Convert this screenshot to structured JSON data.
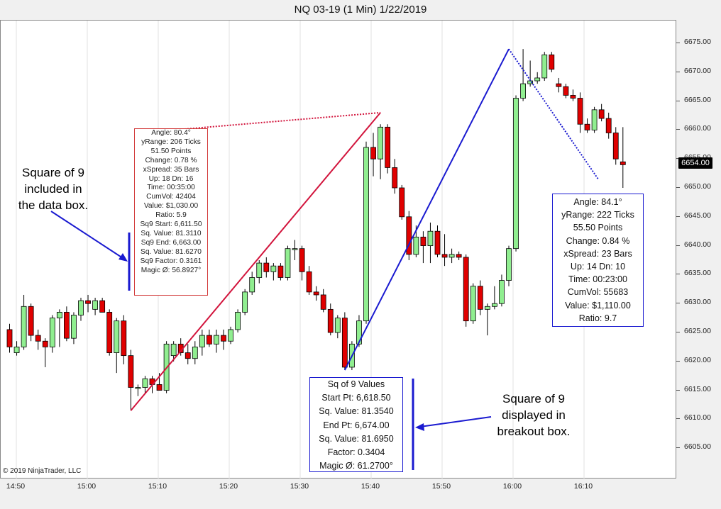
{
  "window": {
    "title": "NQ 03-19 (1 Min)  1/22/2019"
  },
  "copyright": "© 2019 NinjaTrader, LLC",
  "price_marker": "6654.00",
  "y_axis": {
    "min": 6600,
    "max": 6677,
    "ticks": [
      "6675.00",
      "6670.00",
      "6665.00",
      "6660.00",
      "6655.00",
      "6650.00",
      "6645.00",
      "6640.00",
      "6635.00",
      "6630.00",
      "6625.00",
      "6620.00",
      "6615.00",
      "6610.00",
      "6605.00"
    ]
  },
  "x_axis": {
    "ticks": [
      "14:50",
      "15:00",
      "15:10",
      "15:20",
      "15:30",
      "15:40",
      "15:50",
      "16:00",
      "16:10"
    ]
  },
  "data_box": {
    "lines": [
      "Angle: 80.4°",
      "yRange: 206 Ticks",
      "51.50 Points",
      "Change: 0.78 %",
      "xSpread: 35 Bars",
      "Up: 18 Dn: 16",
      "Time: 00:35:00",
      "CumVol: 42404",
      "Value: $1,030.00",
      "Ratio: 5.9",
      "Sq9 Start: 6,611.50",
      "Sq. Value: 81.3110",
      "Sq9 End: 6,663.00",
      "Sq. Value: 81.6270",
      "Sq9 Factor: 0.3161",
      "Magic Ø: 56.8927°"
    ]
  },
  "breakout_box": {
    "lines": [
      "Angle: 84.1°",
      "yRange: 222 Ticks",
      "55.50 Points",
      "Change: 0.84 %",
      "xSpread: 23 Bars",
      "Up: 14 Dn: 10",
      "Time: 00:23:00",
      "CumVol: 55683",
      "Value: $1,110.00",
      "Ratio: 9.7"
    ]
  },
  "sq9_box": {
    "lines": [
      "Sq of 9 Values",
      "Start Pt: 6,618.50",
      "Sq. Value: 81.3540",
      "End Pt: 6,674.00",
      "Sq. Value: 81.6950",
      "Factor: 0.3404",
      "Magic Ø: 61.2700°"
    ]
  },
  "annotations": {
    "left": [
      "Square of 9",
      "included in",
      "the data box."
    ],
    "right": [
      "Square of 9",
      "displayed in",
      "breakout box."
    ]
  },
  "colors": {
    "up": "#90ee90",
    "down": "#e00000",
    "red_line": "#d2143c",
    "blue_line": "#1a1ad0",
    "background": "#ffffff"
  },
  "chart_data": {
    "type": "candlestick",
    "title": "NQ 03-19 (1 Min)  1/22/2019",
    "candles": [
      {
        "o": 6625.5,
        "h": 6626.5,
        "l": 6621.5,
        "c": 6622.5
      },
      {
        "o": 6621.5,
        "h": 6623.5,
        "l": 6621.0,
        "c": 6622.5
      },
      {
        "o": 6622.5,
        "h": 6631.5,
        "l": 6622.0,
        "c": 6629.5
      },
      {
        "o": 6629.5,
        "h": 6630.0,
        "l": 6623.5,
        "c": 6624.5
      },
      {
        "o": 6624.5,
        "h": 6625.5,
        "l": 6622.0,
        "c": 6623.5
      },
      {
        "o": 6623.5,
        "h": 6624.0,
        "l": 6619.0,
        "c": 6622.5
      },
      {
        "o": 6622.5,
        "h": 6628.0,
        "l": 6621.5,
        "c": 6627.5
      },
      {
        "o": 6627.5,
        "h": 6629.0,
        "l": 6622.5,
        "c": 6628.5
      },
      {
        "o": 6628.5,
        "h": 6629.5,
        "l": 6623.5,
        "c": 6624.0
      },
      {
        "o": 6624.0,
        "h": 6628.5,
        "l": 6623.0,
        "c": 6628.0
      },
      {
        "o": 6628.0,
        "h": 6631.0,
        "l": 6627.0,
        "c": 6630.5
      },
      {
        "o": 6630.5,
        "h": 6631.5,
        "l": 6628.5,
        "c": 6630.0
      },
      {
        "o": 6629.0,
        "h": 6631.0,
        "l": 6628.0,
        "c": 6630.5
      },
      {
        "o": 6630.5,
        "h": 6631.0,
        "l": 6628.5,
        "c": 6628.5
      },
      {
        "o": 6628.5,
        "h": 6629.0,
        "l": 6621.0,
        "c": 6621.5
      },
      {
        "o": 6621.5,
        "h": 6627.5,
        "l": 6618.0,
        "c": 6627.0
      },
      {
        "o": 6627.0,
        "h": 6628.0,
        "l": 6619.5,
        "c": 6621.0
      },
      {
        "o": 6621.0,
        "h": 6622.0,
        "l": 6611.5,
        "c": 6615.5
      },
      {
        "o": 6615.5,
        "h": 6616.0,
        "l": 6614.0,
        "c": 6615.5
      },
      {
        "o": 6615.5,
        "h": 6617.5,
        "l": 6614.5,
        "c": 6617.0
      },
      {
        "o": 6617.0,
        "h": 6617.5,
        "l": 6614.5,
        "c": 6616.0
      },
      {
        "o": 6616.0,
        "h": 6618.0,
        "l": 6615.0,
        "c": 6615.0
      },
      {
        "o": 6615.0,
        "h": 6623.5,
        "l": 6614.5,
        "c": 6623.0
      },
      {
        "o": 6621.0,
        "h": 6623.5,
        "l": 6620.0,
        "c": 6623.0
      },
      {
        "o": 6623.0,
        "h": 6624.0,
        "l": 6621.0,
        "c": 6621.5
      },
      {
        "o": 6621.5,
        "h": 6623.0,
        "l": 6619.5,
        "c": 6620.5
      },
      {
        "o": 6620.5,
        "h": 6623.5,
        "l": 6619.5,
        "c": 6622.5
      },
      {
        "o": 6622.5,
        "h": 6625.5,
        "l": 6621.0,
        "c": 6624.5
      },
      {
        "o": 6624.5,
        "h": 6625.5,
        "l": 6622.5,
        "c": 6623.0
      },
      {
        "o": 6623.0,
        "h": 6625.5,
        "l": 6621.5,
        "c": 6624.5
      },
      {
        "o": 6624.5,
        "h": 6625.5,
        "l": 6622.0,
        "c": 6623.5
      },
      {
        "o": 6623.5,
        "h": 6626.0,
        "l": 6623.0,
        "c": 6625.5
      },
      {
        "o": 6625.5,
        "h": 6629.0,
        "l": 6625.0,
        "c": 6628.5
      },
      {
        "o": 6628.5,
        "h": 6632.5,
        "l": 6628.0,
        "c": 6632.0
      },
      {
        "o": 6632.0,
        "h": 6635.5,
        "l": 6631.5,
        "c": 6634.5
      },
      {
        "o": 6634.5,
        "h": 6637.5,
        "l": 6633.5,
        "c": 6637.0
      },
      {
        "o": 6637.0,
        "h": 6638.0,
        "l": 6634.5,
        "c": 6635.5
      },
      {
        "o": 6635.5,
        "h": 6637.0,
        "l": 6634.0,
        "c": 6636.5
      },
      {
        "o": 6636.5,
        "h": 6637.0,
        "l": 6634.0,
        "c": 6634.5
      },
      {
        "o": 6634.5,
        "h": 6640.0,
        "l": 6634.0,
        "c": 6639.5
      },
      {
        "o": 6639.5,
        "h": 6641.0,
        "l": 6637.5,
        "c": 6639.5
      },
      {
        "o": 6639.5,
        "h": 6640.0,
        "l": 6634.0,
        "c": 6635.5
      },
      {
        "o": 6635.5,
        "h": 6636.5,
        "l": 6631.5,
        "c": 6632.0
      },
      {
        "o": 6632.0,
        "h": 6633.0,
        "l": 6630.5,
        "c": 6631.5
      },
      {
        "o": 6631.5,
        "h": 6632.5,
        "l": 6628.5,
        "c": 6629.0
      },
      {
        "o": 6629.0,
        "h": 6630.0,
        "l": 6624.5,
        "c": 6625.0
      },
      {
        "o": 6625.0,
        "h": 6628.0,
        "l": 6624.0,
        "c": 6627.5
      },
      {
        "o": 6627.5,
        "h": 6628.5,
        "l": 6618.5,
        "c": 6619.0
      },
      {
        "o": 6619.0,
        "h": 6623.5,
        "l": 6618.5,
        "c": 6623.0
      },
      {
        "o": 6623.0,
        "h": 6628.0,
        "l": 6622.5,
        "c": 6627.0
      },
      {
        "o": 6627.0,
        "h": 6658.0,
        "l": 6626.5,
        "c": 6657.0
      },
      {
        "o": 6657.0,
        "h": 6659.5,
        "l": 6652.0,
        "c": 6655.0
      },
      {
        "o": 6655.0,
        "h": 6661.0,
        "l": 6651.5,
        "c": 6660.5
      },
      {
        "o": 6660.5,
        "h": 6661.0,
        "l": 6652.5,
        "c": 6653.5
      },
      {
        "o": 6653.5,
        "h": 6655.0,
        "l": 6649.0,
        "c": 6650.0
      },
      {
        "o": 6650.0,
        "h": 6650.5,
        "l": 6644.5,
        "c": 6645.0
      },
      {
        "o": 6645.0,
        "h": 6646.0,
        "l": 6637.5,
        "c": 6638.5
      },
      {
        "o": 6638.5,
        "h": 6643.5,
        "l": 6638.0,
        "c": 6641.5
      },
      {
        "o": 6641.5,
        "h": 6642.5,
        "l": 6637.0,
        "c": 6640.0
      },
      {
        "o": 6640.0,
        "h": 6644.0,
        "l": 6637.0,
        "c": 6642.5
      },
      {
        "o": 6642.5,
        "h": 6643.5,
        "l": 6638.0,
        "c": 6638.5
      },
      {
        "o": 6638.5,
        "h": 6642.0,
        "l": 6636.5,
        "c": 6638.0
      },
      {
        "o": 6638.0,
        "h": 6639.5,
        "l": 6637.0,
        "c": 6638.5
      },
      {
        "o": 6638.5,
        "h": 6639.0,
        "l": 6637.5,
        "c": 6638.0
      },
      {
        "o": 6638.0,
        "h": 6638.5,
        "l": 6626.0,
        "c": 6627.0
      },
      {
        "o": 6627.0,
        "h": 6633.5,
        "l": 6626.5,
        "c": 6633.0
      },
      {
        "o": 6633.0,
        "h": 6634.0,
        "l": 6628.0,
        "c": 6629.0
      },
      {
        "o": 6629.0,
        "h": 6630.0,
        "l": 6624.5,
        "c": 6629.5
      },
      {
        "o": 6629.5,
        "h": 6633.0,
        "l": 6629.0,
        "c": 6630.0
      },
      {
        "o": 6630.0,
        "h": 6635.0,
        "l": 6629.5,
        "c": 6634.0
      },
      {
        "o": 6634.0,
        "h": 6640.0,
        "l": 6633.0,
        "c": 6639.5
      },
      {
        "o": 6639.5,
        "h": 6666.0,
        "l": 6639.0,
        "c": 6665.5
      },
      {
        "o": 6665.5,
        "h": 6674.0,
        "l": 6665.0,
        "c": 6668.0
      },
      {
        "o": 6668.0,
        "h": 6672.0,
        "l": 6667.5,
        "c": 6668.5
      },
      {
        "o": 6668.5,
        "h": 6670.0,
        "l": 6668.0,
        "c": 6669.0
      },
      {
        "o": 6669.0,
        "h": 6673.5,
        "l": 6668.5,
        "c": 6673.0
      },
      {
        "o": 6673.0,
        "h": 6673.5,
        "l": 6670.0,
        "c": 6670.5
      },
      {
        "o": 6668.0,
        "h": 6669.0,
        "l": 6666.5,
        "c": 6667.5
      },
      {
        "o": 6667.5,
        "h": 6668.0,
        "l": 6665.5,
        "c": 6666.0
      },
      {
        "o": 6666.0,
        "h": 6667.0,
        "l": 6665.0,
        "c": 6665.5
      },
      {
        "o": 6665.5,
        "h": 6666.5,
        "l": 6659.5,
        "c": 6661.0
      },
      {
        "o": 6661.0,
        "h": 6662.0,
        "l": 6659.5,
        "c": 6660.0
      },
      {
        "o": 6660.0,
        "h": 6664.0,
        "l": 6659.5,
        "c": 6663.5
      },
      {
        "o": 6663.5,
        "h": 6664.5,
        "l": 6661.5,
        "c": 6662.0
      },
      {
        "o": 6662.0,
        "h": 6663.0,
        "l": 6658.5,
        "c": 6659.5
      },
      {
        "o": 6659.5,
        "h": 6660.5,
        "l": 6654.0,
        "c": 6655.0
      },
      {
        "o": 6654.5,
        "h": 6660.5,
        "l": 6650.0,
        "c": 6654.0
      }
    ],
    "trend_lines": [
      {
        "name": "red",
        "from": {
          "bar": 17,
          "price": 6611.5
        },
        "to": {
          "bar": 52,
          "price": 6663.0
        }
      },
      {
        "name": "blue",
        "from": {
          "bar": 47,
          "price": 6618.5
        },
        "to": {
          "bar": 70,
          "price": 6674.0
        }
      }
    ]
  }
}
